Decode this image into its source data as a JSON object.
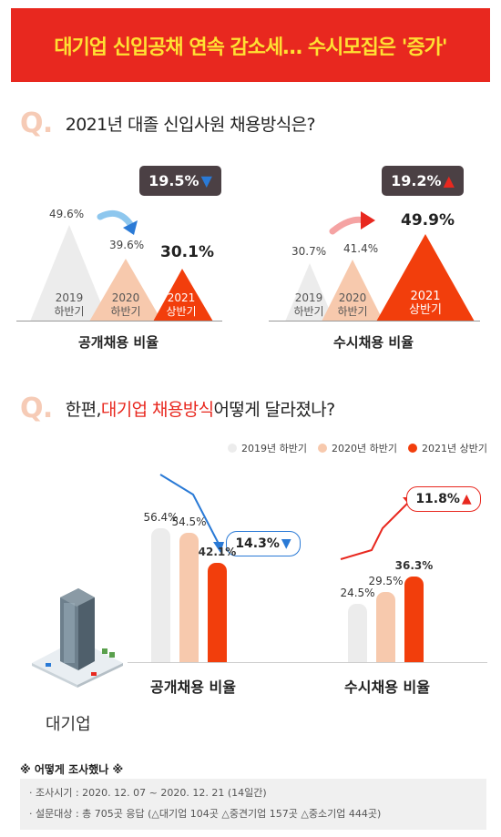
{
  "banner": {
    "title": "대기업 신입공채 연속 감소세… 수시모집은 '증가'"
  },
  "q1": {
    "mark": "Q.",
    "text": "2021년 대졸 신입사원 채용방식은?"
  },
  "q2": {
    "mark": "Q.",
    "prefix": "한편, ",
    "highlight": "대기업 채용방식",
    "suffix": " 어떻게 달라졌나?"
  },
  "colors": {
    "gray": "#ececec",
    "peach": "#f7c9ad",
    "red": "#f23e0c",
    "banner": "#e8281f",
    "badge": "#4b4044",
    "blue_arrow": "#2a7ad6"
  },
  "chart_data": [
    {
      "type": "area",
      "title": "공개채용 비율",
      "categories": [
        "2019 하반기",
        "2020 하반기",
        "2021 상반기"
      ],
      "values": [
        49.6,
        39.6,
        30.1
      ],
      "value_labels": [
        "49.6%",
        "39.6%",
        "30.1%"
      ],
      "change_label": "19.5%",
      "change_direction": "down"
    },
    {
      "type": "area",
      "title": "수시채용 비율",
      "categories": [
        "2019 하반기",
        "2020 하반기",
        "2021 상반기"
      ],
      "values": [
        30.7,
        41.4,
        49.9
      ],
      "value_labels": [
        "30.7%",
        "41.4%",
        "49.9%"
      ],
      "change_label": "19.2%",
      "change_direction": "up"
    },
    {
      "type": "bar",
      "legend": [
        "2019년 하반기",
        "2020년 하반기",
        "2021년 상반기"
      ],
      "categories": [
        "공개채용 비율",
        "수시채용 비율"
      ],
      "series": [
        {
          "name": "2019년 하반기",
          "values": [
            56.4,
            24.5
          ]
        },
        {
          "name": "2020년 하반기",
          "values": [
            54.5,
            29.5
          ]
        },
        {
          "name": "2021년 상반기",
          "values": [
            42.1,
            36.3
          ]
        }
      ],
      "value_labels": [
        [
          "56.4%",
          "54.5%",
          "42.1%"
        ],
        [
          "24.5%",
          "29.5%",
          "36.3%"
        ]
      ],
      "changes": [
        {
          "label": "14.3%",
          "direction": "down"
        },
        {
          "label": "11.8%",
          "direction": "up"
        }
      ]
    }
  ],
  "company_label": "대기업",
  "footer": {
    "title": "※ 어떻게 조사했나 ※",
    "period": "· 조사시기 : 2020. 12. 07 ~ 2020. 12. 21 (14일간)",
    "subjects": "· 설문대상 : 총 705곳 응답 (△대기업 104곳 △중견기업 157곳 △중소기업 444곳)"
  }
}
